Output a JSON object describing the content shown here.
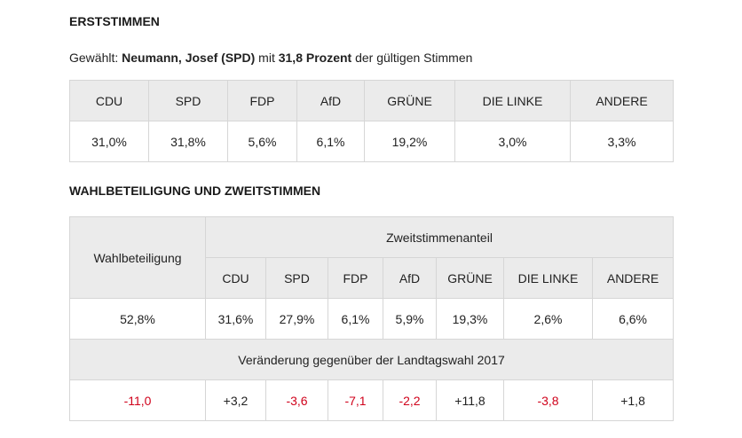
{
  "section1": {
    "title": "ERSTSTIMMEN",
    "elected_prefix": "Gewählt: ",
    "elected_name": "Neumann, Josef (SPD)",
    "elected_mid": " mit ",
    "elected_percent": "31,8 Prozent",
    "elected_suffix": " der gültigen Stimmen",
    "parties": [
      "CDU",
      "SPD",
      "FDP",
      "AfD",
      "GRÜNE",
      "DIE LINKE",
      "ANDERE"
    ],
    "values": [
      "31,0%",
      "31,8%",
      "5,6%",
      "6,1%",
      "19,2%",
      "3,0%",
      "3,3%"
    ]
  },
  "section2": {
    "title": "WAHLBETEILIGUNG UND ZWEITSTIMMEN",
    "turnout_label": "Wahlbeteiligung",
    "share_label": "Zweitstimmenanteil",
    "parties": [
      "CDU",
      "SPD",
      "FDP",
      "AfD",
      "GRÜNE",
      "DIE LINKE",
      "ANDERE"
    ],
    "turnout_value": "52,8%",
    "values": [
      "31,6%",
      "27,9%",
      "6,1%",
      "5,9%",
      "19,3%",
      "2,6%",
      "6,6%"
    ],
    "change_label": "Veränderung gegenüber der Landtagswahl 2017",
    "turnout_change": "-11,0",
    "changes": [
      "+3,2",
      "-3,6",
      "-7,1",
      "-2,2",
      "+11,8",
      "-3,8",
      "+1,8"
    ],
    "colors": {
      "negative": "#d0021b",
      "positive": "#222222",
      "header_bg": "#ebebeb"
    }
  }
}
